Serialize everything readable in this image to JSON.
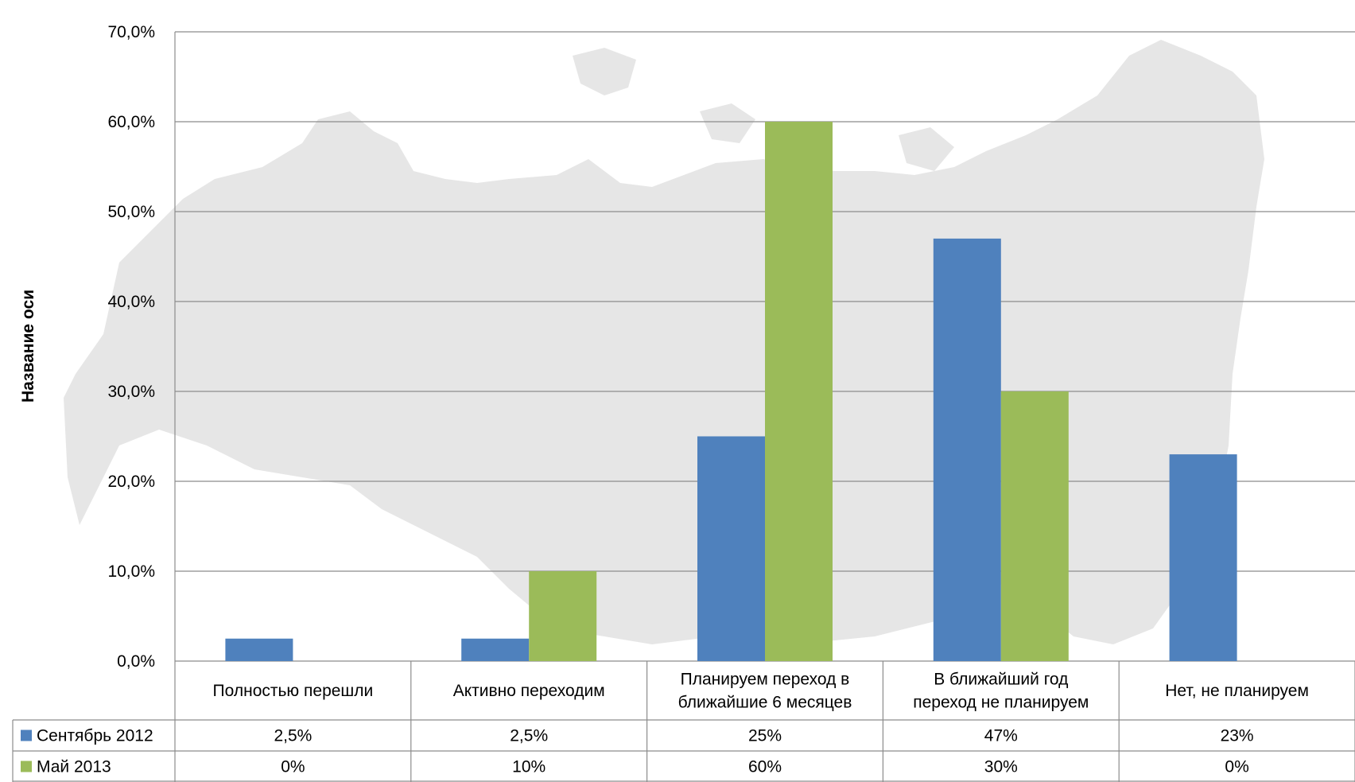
{
  "colors": {
    "series_1": "#4F81BD",
    "series_2": "#9BBB59",
    "gridline": "#8C8C8C",
    "table_border": "#8C8C8C",
    "background_map": "#E6E6E6"
  },
  "chart_data": {
    "type": "bar",
    "title": "",
    "xlabel": "",
    "ylabel": "Название оси",
    "ylim": [
      0,
      70
    ],
    "y_ticks": [
      "0,0%",
      "10,0%",
      "20,0%",
      "30,0%",
      "40,0%",
      "50,0%",
      "60,0%",
      "70,0%"
    ],
    "grid": true,
    "legend_placement": "data-table",
    "background_image": "map-of-russia",
    "categories": [
      [
        "Полностью перешли"
      ],
      [
        "Активно переходим"
      ],
      [
        "Планируем переход в",
        "ближайшие 6 месяцев"
      ],
      [
        "В ближайший год",
        "переход  не планируем"
      ],
      [
        "Нет,  не планируем"
      ]
    ],
    "series": [
      {
        "name": "Сентябрь 2012",
        "values": [
          2.5,
          2.5,
          25,
          47,
          23
        ],
        "table_labels": [
          "2,5%",
          "2,5%",
          "25%",
          "47%",
          "23%"
        ]
      },
      {
        "name": "Май 2013",
        "values": [
          0,
          10,
          60,
          30,
          0
        ],
        "table_labels": [
          "0%",
          "10%",
          "60%",
          "30%",
          "0%"
        ]
      }
    ]
  }
}
